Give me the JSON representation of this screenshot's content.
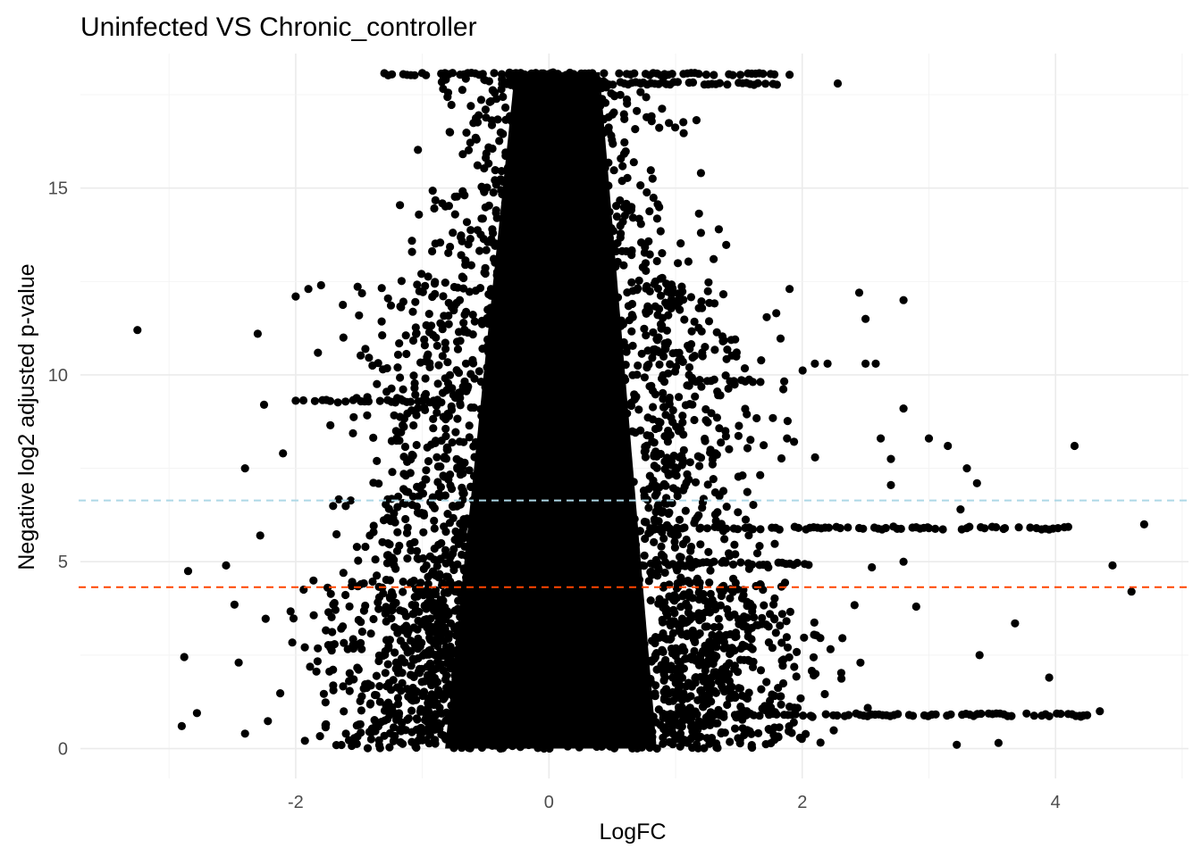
{
  "chart_data": {
    "type": "scatter",
    "title": "Uninfected  VS  Chronic_controller",
    "xlabel": "LogFC",
    "ylabel": "Negative log2 adjusted p-value",
    "xlim": [
      -3.7,
      5.05
    ],
    "ylim": [
      -0.8,
      18.6
    ],
    "x_ticks": [
      -2,
      0,
      2,
      4
    ],
    "x_tick_labels": [
      "-2",
      "0",
      "2",
      "4"
    ],
    "y_ticks": [
      0,
      5,
      10,
      15
    ],
    "y_tick_labels": [
      "0",
      "5",
      "10",
      "15"
    ],
    "grid": true,
    "legend": "none",
    "point_color": "#000000",
    "hlines": [
      {
        "y": 6.64,
        "color": "#add8e6",
        "linestyle": "dashed"
      },
      {
        "y": 4.32,
        "color": "#ff4500",
        "linestyle": "dashed"
      }
    ],
    "distribution": {
      "core_sd_x": 0.28,
      "outer_sd_x": 0.55,
      "y_max": 18.1,
      "saturated_band_y": [
        17.6,
        18.1
      ]
    },
    "notable_points": [
      {
        "x": -3.25,
        "y": 11.2
      },
      {
        "x": -2.9,
        "y": 0.6
      },
      {
        "x": -2.88,
        "y": 2.45
      },
      {
        "x": -2.85,
        "y": 4.75
      },
      {
        "x": -2.78,
        "y": 0.95
      },
      {
        "x": -2.55,
        "y": 4.9
      },
      {
        "x": -2.4,
        "y": 7.5
      },
      {
        "x": -2.3,
        "y": 11.1
      },
      {
        "x": -2.25,
        "y": 9.2
      },
      {
        "x": -2.28,
        "y": 5.7
      },
      {
        "x": -2.1,
        "y": 7.9
      },
      {
        "x": -2.0,
        "y": 12.1
      },
      {
        "x": -1.9,
        "y": 12.3
      },
      {
        "x": -1.8,
        "y": 12.4
      },
      {
        "x": -2.45,
        "y": 2.3
      },
      {
        "x": -2.4,
        "y": 0.4
      },
      {
        "x": 1.2,
        "y": 15.4
      },
      {
        "x": 1.2,
        "y": 13.8
      },
      {
        "x": 1.3,
        "y": 13.1
      },
      {
        "x": 1.9,
        "y": 12.3
      },
      {
        "x": 1.88,
        "y": 8.3
      },
      {
        "x": 2.28,
        "y": 17.8
      },
      {
        "x": 2.45,
        "y": 12.2
      },
      {
        "x": 2.5,
        "y": 11.5
      },
      {
        "x": 2.8,
        "y": 12.0
      },
      {
        "x": 2.8,
        "y": 9.1
      },
      {
        "x": 2.62,
        "y": 8.3
      },
      {
        "x": 2.7,
        "y": 7.75
      },
      {
        "x": 2.7,
        "y": 7.05
      },
      {
        "x": 3.0,
        "y": 8.3
      },
      {
        "x": 3.15,
        "y": 8.1
      },
      {
        "x": 3.3,
        "y": 7.5
      },
      {
        "x": 3.38,
        "y": 7.1
      },
      {
        "x": 3.25,
        "y": 6.4
      },
      {
        "x": 3.0,
        "y": 5.9
      },
      {
        "x": 3.3,
        "y": 5.9
      },
      {
        "x": 3.6,
        "y": 5.9
      },
      {
        "x": 3.85,
        "y": 5.9
      },
      {
        "x": 4.02,
        "y": 5.9
      },
      {
        "x": 4.15,
        "y": 8.1
      },
      {
        "x": 4.45,
        "y": 4.9
      },
      {
        "x": 4.6,
        "y": 4.2
      },
      {
        "x": 4.7,
        "y": 6.0
      },
      {
        "x": 3.4,
        "y": 2.5
      },
      {
        "x": 3.68,
        "y": 3.35
      },
      {
        "x": 3.22,
        "y": 0.1
      },
      {
        "x": 3.55,
        "y": 0.15
      },
      {
        "x": 4.2,
        "y": 0.85
      },
      {
        "x": 4.35,
        "y": 1.0
      },
      {
        "x": 3.95,
        "y": 1.9
      },
      {
        "x": 2.9,
        "y": 3.8
      },
      {
        "x": 2.55,
        "y": 4.85
      },
      {
        "x": 2.8,
        "y": 5.0
      },
      {
        "x": 2.1,
        "y": 10.3
      },
      {
        "x": 2.2,
        "y": 10.3
      },
      {
        "x": 2.5,
        "y": 10.3
      },
      {
        "x": 2.58,
        "y": 10.3
      }
    ],
    "horizontal_streaks": [
      {
        "y": 5.9,
        "x_from": 0.8,
        "x_to": 4.1
      },
      {
        "y": 0.9,
        "x_from": 0.9,
        "x_to": 4.25
      },
      {
        "y": 9.3,
        "x_from": -2.0,
        "x_to": -0.85
      },
      {
        "y": 4.95,
        "x_from": 0.8,
        "x_to": 2.05
      },
      {
        "y": 9.85,
        "x_from": 1.1,
        "x_to": 1.7
      },
      {
        "y": 18.05,
        "x_from": -1.3,
        "x_to": 1.9
      },
      {
        "y": 17.8,
        "x_from": -0.4,
        "x_to": 1.8
      }
    ]
  }
}
